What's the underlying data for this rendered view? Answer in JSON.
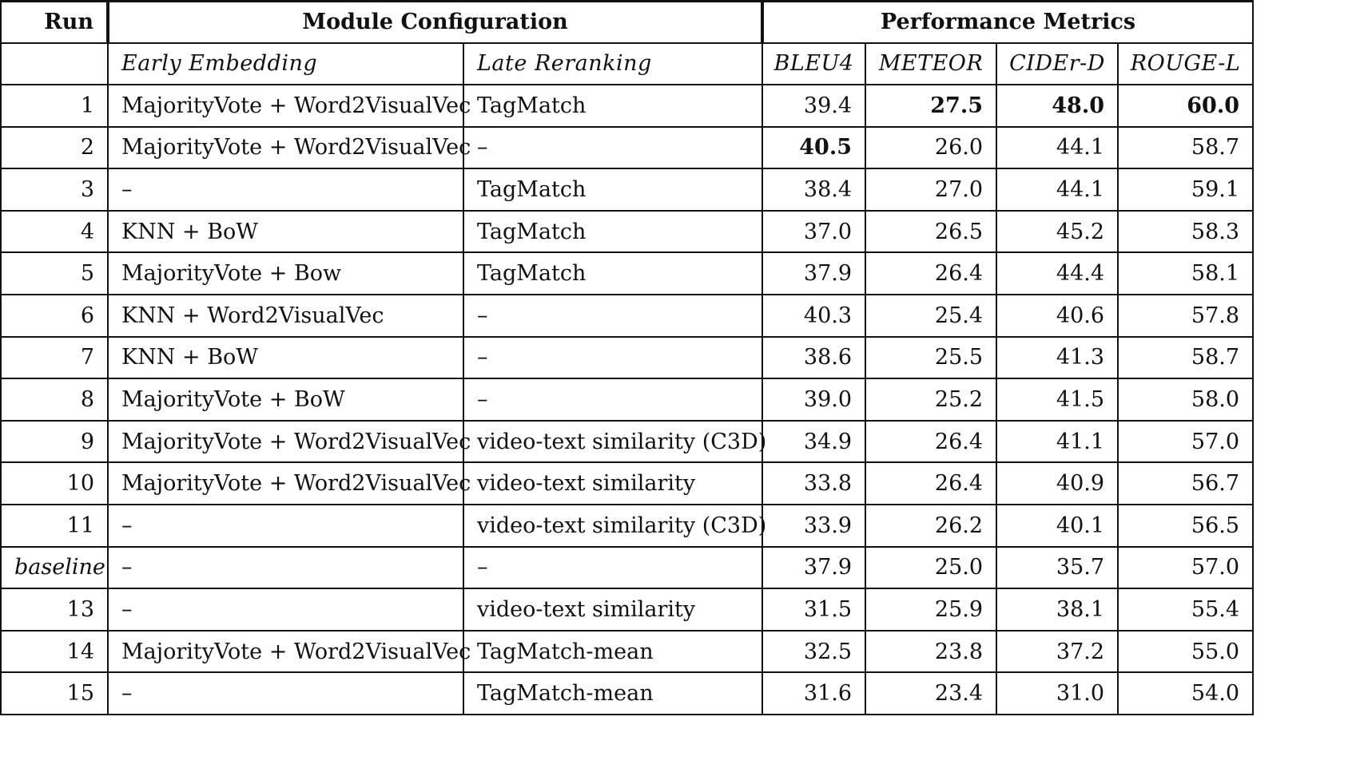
{
  "header": {
    "run": "Run",
    "module_configuration": "Module Configuration",
    "performance_metrics": "Performance Metrics"
  },
  "subheader": {
    "early": "Early Embedding",
    "late": "Late Reranking",
    "bleu": "BLEU4",
    "meteor": "METEOR",
    "cider": "CIDEr-D",
    "rouge": "ROUGE-L"
  },
  "rows": [
    {
      "run": "1",
      "early": "MajorityVote + Word2VisualVec",
      "late": "TagMatch",
      "bleu": "39.4",
      "meteor": "27.5",
      "cider": "48.0",
      "rouge": "60.0"
    },
    {
      "run": "2",
      "early": "MajorityVote + Word2VisualVec",
      "late": "–",
      "bleu": "40.5",
      "meteor": "26.0",
      "cider": "44.1",
      "rouge": "58.7"
    },
    {
      "run": "3",
      "early": "–",
      "late": "TagMatch",
      "bleu": "38.4",
      "meteor": "27.0",
      "cider": "44.1",
      "rouge": "59.1"
    },
    {
      "run": "4",
      "early": "KNN + BoW",
      "late": "TagMatch",
      "bleu": "37.0",
      "meteor": "26.5",
      "cider": "45.2",
      "rouge": "58.3"
    },
    {
      "run": "5",
      "early": "MajorityVote + Bow",
      "late": "TagMatch",
      "bleu": "37.9",
      "meteor": "26.4",
      "cider": "44.4",
      "rouge": "58.1"
    },
    {
      "run": "6",
      "early": "KNN + Word2VisualVec",
      "late": "–",
      "bleu": "40.3",
      "meteor": "25.4",
      "cider": "40.6",
      "rouge": "57.8"
    },
    {
      "run": "7",
      "early": "KNN + BoW",
      "late": "–",
      "bleu": "38.6",
      "meteor": "25.5",
      "cider": "41.3",
      "rouge": "58.7"
    },
    {
      "run": "8",
      "early": "MajorityVote + BoW",
      "late": "–",
      "bleu": "39.0",
      "meteor": "25.2",
      "cider": "41.5",
      "rouge": "58.0"
    },
    {
      "run": "9",
      "early": "MajorityVote + Word2VisualVec",
      "late": "video-text similarity (C3D)",
      "bleu": "34.9",
      "meteor": "26.4",
      "cider": "41.1",
      "rouge": "57.0"
    },
    {
      "run": "10",
      "early": "MajorityVote + Word2VisualVec",
      "late": "video-text similarity",
      "bleu": "33.8",
      "meteor": "26.4",
      "cider": "40.9",
      "rouge": "56.7"
    },
    {
      "run": "11",
      "early": "–",
      "late": "video-text similarity (C3D)",
      "bleu": "33.9",
      "meteor": "26.2",
      "cider": "40.1",
      "rouge": "56.5"
    },
    {
      "run": "baseline",
      "early": "–",
      "late": "–",
      "bleu": "37.9",
      "meteor": "25.0",
      "cider": "35.7",
      "rouge": "57.0"
    },
    {
      "run": "13",
      "early": "–",
      "late": "video-text similarity",
      "bleu": "31.5",
      "meteor": "25.9",
      "cider": "38.1",
      "rouge": "55.4"
    },
    {
      "run": "14",
      "early": "MajorityVote + Word2VisualVec",
      "late": "TagMatch-mean",
      "bleu": "32.5",
      "meteor": "23.8",
      "cider": "37.2",
      "rouge": "55.0"
    },
    {
      "run": "15",
      "early": "–",
      "late": "TagMatch-mean",
      "bleu": "31.6",
      "meteor": "23.4",
      "cider": "31.0",
      "rouge": "54.0"
    }
  ]
}
